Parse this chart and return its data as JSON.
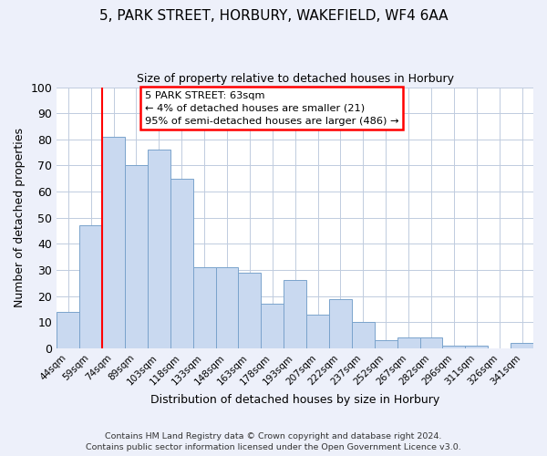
{
  "title": "5, PARK STREET, HORBURY, WAKEFIELD, WF4 6AA",
  "subtitle": "Size of property relative to detached houses in Horbury",
  "xlabel": "Distribution of detached houses by size in Horbury",
  "ylabel": "Number of detached properties",
  "bar_labels": [
    "44sqm",
    "59sqm",
    "74sqm",
    "89sqm",
    "103sqm",
    "118sqm",
    "133sqm",
    "148sqm",
    "163sqm",
    "178sqm",
    "193sqm",
    "207sqm",
    "222sqm",
    "237sqm",
    "252sqm",
    "267sqm",
    "282sqm",
    "296sqm",
    "311sqm",
    "326sqm",
    "341sqm"
  ],
  "bar_values": [
    14,
    47,
    81,
    70,
    76,
    65,
    31,
    31,
    29,
    17,
    26,
    13,
    19,
    10,
    3,
    4,
    4,
    1,
    1,
    0,
    2
  ],
  "bar_color": "#c9d9f0",
  "bar_edge_color": "#7aa3cc",
  "ylim": [
    0,
    100
  ],
  "yticks": [
    0,
    10,
    20,
    30,
    40,
    50,
    60,
    70,
    80,
    90,
    100
  ],
  "red_line_x": 1.5,
  "annotation_box_text": "5 PARK STREET: 63sqm\n← 4% of detached houses are smaller (21)\n95% of semi-detached houses are larger (486) →",
  "footer_line1": "Contains HM Land Registry data © Crown copyright and database right 2024.",
  "footer_line2": "Contains public sector information licensed under the Open Government Licence v3.0.",
  "bg_color": "#edf0fa",
  "plot_bg_color": "#ffffff",
  "grid_color": "#c0ccdf"
}
